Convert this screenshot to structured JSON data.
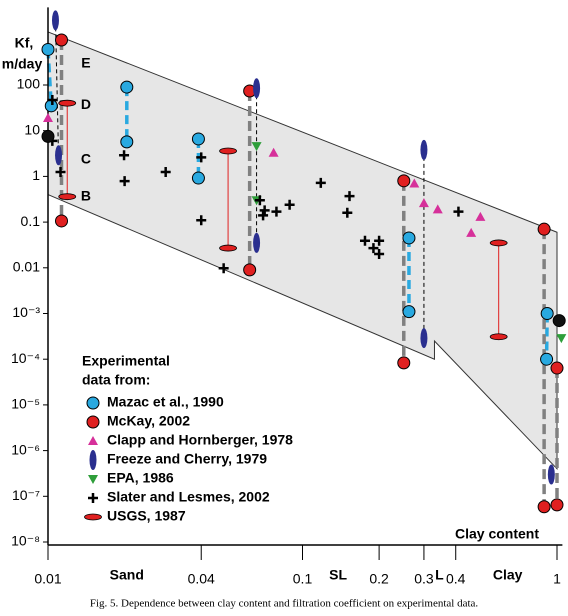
{
  "chart_data": {
    "type": "scatter",
    "ylabel": [
      "Kf,",
      "m/day"
    ],
    "xlabel": "Clay content",
    "caption": "Fig. 5. Dependence between clay content and filtration coefficient on experimental data.",
    "legend_title": [
      "Experimental",
      "data from:"
    ],
    "log_x": true,
    "log_y": true,
    "xlim": [
      0.01,
      1.05
    ],
    "ylim": [
      1e-08,
      5000
    ],
    "xticks": [
      0.01,
      0.04,
      0.1,
      0.2,
      0.3,
      0.4,
      1
    ],
    "yticks": [
      100,
      10,
      1,
      0.1,
      0.01,
      {
        "value": 0.001,
        "label": "10⁻³"
      },
      {
        "value": 0.0001,
        "label": "10⁻⁴"
      },
      {
        "value": 1e-05,
        "label": "10⁻⁵"
      },
      {
        "value": 1e-06,
        "label": "10⁻⁶"
      },
      {
        "value": 1e-07,
        "label": "10⁻⁷"
      },
      {
        "value": 1e-08,
        "label": "10⁻⁸"
      }
    ],
    "x_regions": [
      {
        "label": "Sand",
        "x": 0.0204
      },
      {
        "label": "SL",
        "x": 0.138
      },
      {
        "label": "L",
        "x": 0.345
      },
      {
        "label": "Clay",
        "x": 0.64
      }
    ],
    "zone_labels": [
      {
        "label": "E",
        "x": 0.0141,
        "y": 290
      },
      {
        "label": "D",
        "x": 0.0141,
        "y": 36
      },
      {
        "label": "C",
        "x": 0.0141,
        "y": 2.3
      },
      {
        "label": "B",
        "x": 0.0141,
        "y": 0.36
      }
    ],
    "band": {
      "color": "#e6e6e6",
      "x": [
        0.01,
        1.0,
        1.0,
        0.33,
        0.33,
        0.01
      ],
      "values": [
        1450,
        0.06,
        4e-07,
        0.00025,
        0.0001,
        0.4
      ]
    },
    "series": [
      {
        "name": "Mazac et al., 1990",
        "color": "#29a9e0",
        "marker": "circle",
        "x": [
          0.01,
          0.0103,
          0.0204,
          0.0204,
          0.039,
          0.039,
          0.262,
          0.262,
          0.915,
          0.91
        ],
        "values": [
          600,
          35,
          90,
          5.7,
          6.6,
          0.92,
          0.045,
          0.0011,
          0.001,
          0.0001
        ]
      },
      {
        "name": "McKay, 2002",
        "color": "#e02020",
        "marker": "circle",
        "x": [
          0.0113,
          0.0113,
          0.062,
          0.062,
          0.25,
          0.25,
          0.89,
          0.89,
          1.0,
          1.0
        ],
        "values": [
          966,
          0.106,
          74,
          0.009,
          0.8,
          8.3e-05,
          0.07,
          5.9e-08,
          6.4e-05,
          6.5e-08
        ]
      },
      {
        "name": "Clapp and Hornberger, 1978",
        "color": "#d6309a",
        "marker": "triangle-up",
        "x": [
          0.01,
          0.077,
          0.275,
          0.3,
          0.34,
          0.46,
          0.5
        ],
        "values": [
          19,
          3.3,
          0.7,
          0.26,
          0.19,
          0.058,
          0.13
        ]
      },
      {
        "name": "Freeze and Cherry, 1979",
        "color": "#2a2f8f",
        "marker": "ellipse-v",
        "x": [
          0.0107,
          0.011,
          0.066,
          0.066,
          0.3,
          0.3,
          0.95
        ],
        "values": [
          2600,
          2.9,
          85,
          0.035,
          3.8,
          0.00029,
          3e-07
        ]
      },
      {
        "name": "EPA, 1986",
        "color": "#2e9e3a",
        "marker": "triangle-down",
        "x": [
          0.066,
          0.066,
          1.04
        ],
        "values": [
          4.6,
          0.3,
          0.00029
        ]
      },
      {
        "name": "Slater and Lesmes, 2002",
        "color": "#000000",
        "marker": "cross",
        "x": [
          0.0104,
          0.0104,
          0.0112,
          0.0199,
          0.02,
          0.029,
          0.04,
          0.04,
          0.049,
          0.068,
          0.071,
          0.07,
          0.079,
          0.089,
          0.118,
          0.153,
          0.15,
          0.176,
          0.19,
          0.2,
          0.2,
          0.41
        ],
        "values": [
          47,
          6,
          1.25,
          2.9,
          0.79,
          1.25,
          2.6,
          0.11,
          0.0098,
          0.3,
          0.18,
          0.14,
          0.17,
          0.24,
          0.72,
          0.37,
          0.16,
          0.039,
          0.027,
          0.02,
          0.039,
          0.17
        ]
      },
      {
        "name": "USGS, 1987",
        "color": "#e02020",
        "marker": "ellipse-h",
        "x": [
          0.0119,
          0.0119,
          0.051,
          0.051,
          0.59,
          0.59
        ],
        "values": [
          40,
          0.36,
          3.6,
          0.027,
          0.035,
          0.00031
        ]
      },
      {
        "color": "#111111",
        "marker": "circle",
        "x": [
          0.01,
          1.02
        ],
        "values": [
          7.5,
          0.0007
        ]
      }
    ]
  }
}
